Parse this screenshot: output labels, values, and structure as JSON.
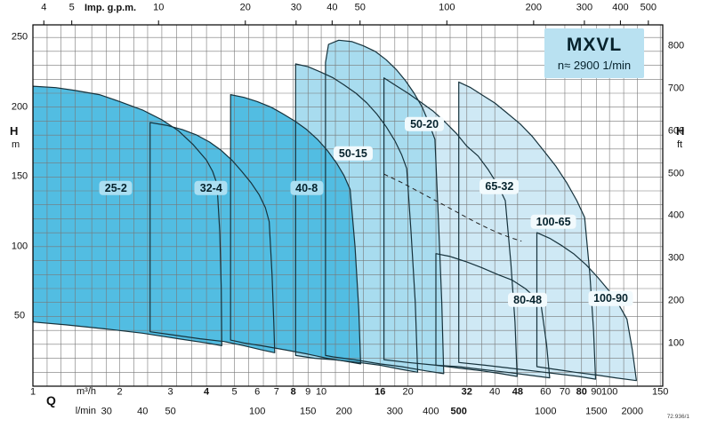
{
  "meta": {
    "doc_code": "72.936/1"
  },
  "title_box": {
    "model": "MXVL",
    "speed": "n≈ 2900 1/min"
  },
  "axis_labels": {
    "top": "Imp. g.p.m.",
    "left_symbol": "H",
    "left_unit": "m",
    "right_symbol": "H",
    "right_unit": "ft",
    "bottom_symbol": "Q",
    "bottom_unit_1": "m³/h",
    "bottom_unit_2": "l/min"
  },
  "chart_data": {
    "type": "area",
    "title": "MXVL",
    "subtitle": "n≈ 2900 1/min",
    "description": "Pump selection chart: head H versus flow Q operating envelopes for MXVL vertical multi-stage pumps at n ≈ 2900 1/min",
    "x": {
      "scale": "log",
      "unit": "m³/h",
      "min": 1,
      "max": 153,
      "gridlines": [
        1,
        1.12,
        1.25,
        1.4,
        1.6,
        1.8,
        2,
        2.24,
        2.5,
        2.8,
        3.15,
        3.55,
        4,
        4.5,
        5,
        5.6,
        6.3,
        7,
        8,
        9,
        10,
        11.2,
        12.5,
        14,
        16,
        18,
        20,
        22.4,
        25,
        28,
        32,
        36,
        40,
        48,
        60,
        70,
        80,
        90,
        100,
        112,
        125,
        150
      ],
      "ticks_m3h": [
        {
          "v": 1,
          "bold": false
        },
        {
          "v": 2,
          "bold": false
        },
        {
          "v": 3,
          "bold": false
        },
        {
          "v": 4,
          "bold": true
        },
        {
          "v": 5,
          "bold": false
        },
        {
          "v": 6,
          "bold": false
        },
        {
          "v": 7,
          "bold": false
        },
        {
          "v": 8,
          "bold": true
        },
        {
          "v": 9,
          "bold": false
        },
        {
          "v": 10,
          "bold": false
        },
        {
          "v": 16,
          "bold": true
        },
        {
          "v": 20,
          "bold": false
        },
        {
          "v": 32,
          "bold": true
        },
        {
          "v": 40,
          "bold": false
        },
        {
          "v": 48,
          "bold": true
        },
        {
          "v": 60,
          "bold": false
        },
        {
          "v": 70,
          "bold": false
        },
        {
          "v": 80,
          "bold": true
        },
        {
          "v": 90,
          "bold": false
        },
        {
          "v": 100,
          "bold": false
        },
        {
          "v": 150,
          "bold": false
        }
      ],
      "ticks_lmin": [
        {
          "v": 30,
          "bold": false
        },
        {
          "v": 40,
          "bold": false
        },
        {
          "v": 50,
          "bold": false
        },
        {
          "v": 100,
          "bold": false
        },
        {
          "v": 150,
          "bold": false
        },
        {
          "v": 200,
          "bold": false
        },
        {
          "v": 300,
          "bold": false
        },
        {
          "v": 400,
          "bold": false
        },
        {
          "v": 500,
          "bold": true
        },
        {
          "v": 1000,
          "bold": false
        },
        {
          "v": 1500,
          "bold": false
        },
        {
          "v": 2000,
          "bold": false
        }
      ],
      "ticks_imp_gpm": [
        4,
        5,
        10,
        20,
        30,
        40,
        50,
        100,
        200,
        300,
        400,
        500
      ],
      "imp_gpm_to_m3h": 0.27276,
      "lmin_to_m3h": 0.06
    },
    "y": {
      "unit_left": "m",
      "min": 0,
      "max": 259,
      "grid_step": 10,
      "grid_max": 250,
      "ticks_m": [
        250,
        200,
        150,
        100,
        50
      ],
      "unit_right": "ft",
      "ticks_ft": [
        800,
        700,
        600,
        500,
        400,
        300,
        200,
        100
      ],
      "ft_to_m": 0.3048
    },
    "colors": {
      "fill_dark": "#52bde2",
      "fill_mid": "#a8dcef",
      "fill_light": "#cfe9f5",
      "stroke": "#16323c",
      "grid": "#787878",
      "border": "#000000",
      "title_box_bg": "#b9e1f1",
      "label_bg_dark": "#abdff2",
      "label_bg_light": "#f2fafd",
      "dashed": "#222222"
    },
    "regions": [
      {
        "name": "100-90",
        "tone": "light",
        "label_at": [
          101,
          63
        ],
        "points": [
          [
            56,
            110
          ],
          [
            62,
            106
          ],
          [
            68,
            101
          ],
          [
            75,
            95
          ],
          [
            83,
            87
          ],
          [
            91,
            78
          ],
          [
            100,
            68
          ],
          [
            108,
            58
          ],
          [
            115,
            48
          ],
          [
            120,
            26
          ],
          [
            124,
            4
          ],
          [
            105,
            6
          ],
          [
            90,
            8
          ],
          [
            76,
            10
          ],
          [
            65,
            12
          ],
          [
            56,
            14
          ]
        ]
      },
      {
        "name": "100-65",
        "tone": "light",
        "label_at": [
          63.9,
          118
        ],
        "points": [
          [
            30,
            218
          ],
          [
            33,
            214
          ],
          [
            36,
            209
          ],
          [
            40,
            203
          ],
          [
            44,
            196
          ],
          [
            49,
            188
          ],
          [
            54,
            179
          ],
          [
            59,
            169
          ],
          [
            65,
            158
          ],
          [
            71,
            146
          ],
          [
            77,
            133
          ],
          [
            82,
            121
          ],
          [
            85.5,
            80
          ],
          [
            88,
            40
          ],
          [
            89.5,
            5
          ],
          [
            78,
            7
          ],
          [
            65,
            9
          ],
          [
            54,
            11
          ],
          [
            45,
            13
          ],
          [
            37,
            15
          ],
          [
            30,
            17
          ]
        ]
      },
      {
        "name": "80-48",
        "tone": "light",
        "label_at": [
          52,
          62
        ],
        "points": [
          [
            25,
            95
          ],
          [
            28,
            93
          ],
          [
            32,
            89
          ],
          [
            36,
            85
          ],
          [
            41,
            80
          ],
          [
            46,
            76
          ],
          [
            51,
            70
          ],
          [
            55,
            64
          ],
          [
            58,
            57
          ],
          [
            60.5,
            30
          ],
          [
            62,
            6
          ],
          [
            52,
            8
          ],
          [
            44,
            10
          ],
          [
            36,
            12
          ],
          [
            30,
            14
          ],
          [
            25,
            15
          ]
        ]
      },
      {
        "name": "65-32",
        "tone": "light",
        "label_at": [
          41.5,
          143
        ],
        "points": [
          [
            16.5,
            221
          ],
          [
            18,
            216
          ],
          [
            20,
            210
          ],
          [
            22,
            204
          ],
          [
            24.5,
            197
          ],
          [
            27,
            189
          ],
          [
            29.5,
            181
          ],
          [
            32,
            172
          ],
          [
            35,
            165
          ],
          [
            38,
            155
          ],
          [
            41,
            144
          ],
          [
            43.5,
            133
          ],
          [
            45.5,
            88
          ],
          [
            47,
            46
          ],
          [
            47.8,
            7
          ],
          [
            42,
            9
          ],
          [
            36,
            11
          ],
          [
            30,
            13
          ],
          [
            25,
            15
          ],
          [
            20,
            17
          ],
          [
            16.5,
            19
          ]
        ]
      },
      {
        "name": "50-20",
        "tone": "mid",
        "label_at": [
          22.8,
          188
        ],
        "points": [
          [
            10.35,
            232
          ],
          [
            10.6,
            245
          ],
          [
            11.5,
            248
          ],
          [
            12.8,
            247
          ],
          [
            14,
            244
          ],
          [
            15.4,
            240
          ],
          [
            16.8,
            234
          ],
          [
            18.2,
            227
          ],
          [
            19.6,
            219
          ],
          [
            21,
            210
          ],
          [
            22.4,
            200
          ],
          [
            23.6,
            189
          ],
          [
            24.8,
            177
          ],
          [
            25.5,
            120
          ],
          [
            26.2,
            60
          ],
          [
            26.6,
            9
          ],
          [
            23,
            11
          ],
          [
            19,
            14
          ],
          [
            16,
            16
          ],
          [
            13,
            19
          ],
          [
            11,
            21
          ],
          [
            10.35,
            22
          ]
        ]
      },
      {
        "name": "50-15",
        "tone": "mid",
        "label_at": [
          12.9,
          167
        ],
        "points": [
          [
            8.15,
            231
          ],
          [
            9,
            229
          ],
          [
            10,
            225
          ],
          [
            11,
            221
          ],
          [
            12,
            216
          ],
          [
            13.2,
            210
          ],
          [
            14.4,
            203
          ],
          [
            15.6,
            195
          ],
          [
            16.8,
            186
          ],
          [
            18,
            176
          ],
          [
            19,
            166
          ],
          [
            19.8,
            156
          ],
          [
            20.5,
            110
          ],
          [
            21.2,
            60
          ],
          [
            21.6,
            10
          ],
          [
            19,
            12
          ],
          [
            16,
            15
          ],
          [
            13.5,
            17
          ],
          [
            11,
            19
          ],
          [
            9.5,
            20
          ],
          [
            8.15,
            22
          ]
        ]
      },
      {
        "name": "40-8",
        "tone": "dark",
        "label_at": [
          8.9,
          142
        ],
        "points": [
          [
            4.85,
            209
          ],
          [
            5.4,
            207
          ],
          [
            6,
            204
          ],
          [
            6.7,
            200
          ],
          [
            7.4,
            195
          ],
          [
            8.1,
            190
          ],
          [
            8.9,
            184
          ],
          [
            9.7,
            177
          ],
          [
            10.5,
            169
          ],
          [
            11.3,
            160
          ],
          [
            12,
            151
          ],
          [
            12.6,
            141
          ],
          [
            13.1,
            100
          ],
          [
            13.5,
            55
          ],
          [
            13.7,
            16
          ],
          [
            12,
            18
          ],
          [
            10.5,
            20
          ],
          [
            9,
            23
          ],
          [
            7.5,
            26
          ],
          [
            6.2,
            29
          ],
          [
            5.4,
            31
          ],
          [
            4.85,
            33
          ]
        ]
      },
      {
        "name": "32-4",
        "tone": "dark",
        "label_at": [
          4.15,
          142
        ],
        "points": [
          [
            2.55,
            189
          ],
          [
            2.9,
            187
          ],
          [
            3.3,
            184
          ],
          [
            3.7,
            180
          ],
          [
            4.1,
            175
          ],
          [
            4.5,
            169
          ],
          [
            4.9,
            162
          ],
          [
            5.3,
            154
          ],
          [
            5.7,
            146
          ],
          [
            6.1,
            137
          ],
          [
            6.4,
            128
          ],
          [
            6.6,
            118
          ],
          [
            6.75,
            80
          ],
          [
            6.85,
            45
          ],
          [
            6.9,
            24
          ],
          [
            6.2,
            26
          ],
          [
            5.4,
            29
          ],
          [
            4.6,
            32
          ],
          [
            3.8,
            34
          ],
          [
            3,
            37
          ],
          [
            2.55,
            39
          ]
        ]
      },
      {
        "name": "25-2",
        "tone": "dark",
        "label_at": [
          1.94,
          142
        ],
        "points": [
          [
            1,
            215
          ],
          [
            1.2,
            214
          ],
          [
            1.4,
            212
          ],
          [
            1.7,
            209
          ],
          [
            2,
            204
          ],
          [
            2.4,
            198
          ],
          [
            2.8,
            191
          ],
          [
            3.2,
            183
          ],
          [
            3.6,
            173
          ],
          [
            4,
            162
          ],
          [
            4.2,
            154
          ],
          [
            4.35,
            145
          ],
          [
            4.45,
            110
          ],
          [
            4.5,
            70
          ],
          [
            4.52,
            29
          ],
          [
            4,
            31
          ],
          [
            3.2,
            34
          ],
          [
            2.4,
            38
          ],
          [
            1.8,
            41
          ],
          [
            1.3,
            44
          ],
          [
            1,
            46
          ]
        ]
      }
    ],
    "dashed_line": [
      [
        16.5,
        152
      ],
      [
        19,
        146
      ],
      [
        22,
        139
      ],
      [
        26,
        131
      ],
      [
        30,
        124
      ],
      [
        34,
        118
      ],
      [
        38,
        113
      ],
      [
        42,
        109
      ],
      [
        46,
        106
      ],
      [
        49.5,
        104
      ]
    ]
  }
}
